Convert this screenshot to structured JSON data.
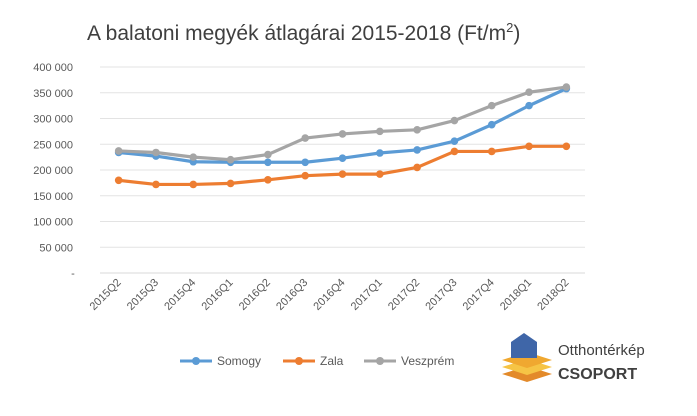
{
  "chart_data": {
    "type": "line",
    "title": "A balatoni megyék átlagárai 2015-2018 (Ft/m",
    "title_superscript": "2",
    "title_suffix": ")",
    "categories": [
      "2015Q2",
      "2015Q3",
      "2015Q4",
      "2016Q1",
      "2016Q2",
      "2016Q3",
      "2016Q4",
      "2017Q1",
      "2017Q2",
      "2017Q3",
      "2017Q4",
      "2018Q1",
      "2018Q2"
    ],
    "ylim": [
      0,
      400000
    ],
    "yticks": [
      0,
      50000,
      100000,
      150000,
      200000,
      250000,
      300000,
      350000,
      400000
    ],
    "ytick_labels": [
      "-",
      "50 000",
      "100 000",
      "150 000",
      "200 000",
      "250 000",
      "300 000",
      "350 000",
      "400 000"
    ],
    "grid": true,
    "legend_position": "bottom",
    "series": [
      {
        "name": "Somogy",
        "color": "#5b9bd5",
        "values": [
          234000,
          227000,
          216000,
          215000,
          215000,
          215000,
          223000,
          233000,
          239000,
          256000,
          288000,
          325000,
          358000
        ]
      },
      {
        "name": "Zala",
        "color": "#ed7d31",
        "values": [
          180000,
          172000,
          172000,
          174000,
          181000,
          189000,
          192000,
          192000,
          205000,
          236000,
          236000,
          246000,
          246000
        ]
      },
      {
        "name": "Veszprém",
        "color": "#a5a5a5",
        "values": [
          237000,
          234000,
          225000,
          220000,
          230000,
          262000,
          270000,
          275000,
          278000,
          296000,
          325000,
          351000,
          361000
        ]
      }
    ]
  },
  "logo": {
    "line1": "Otthontérkép",
    "line2": "CSOPORT",
    "colors": {
      "house": "#3f66a8",
      "stripe1": "#f0a830",
      "stripe2": "#f6c445",
      "stripe3": "#e38a2a"
    }
  }
}
